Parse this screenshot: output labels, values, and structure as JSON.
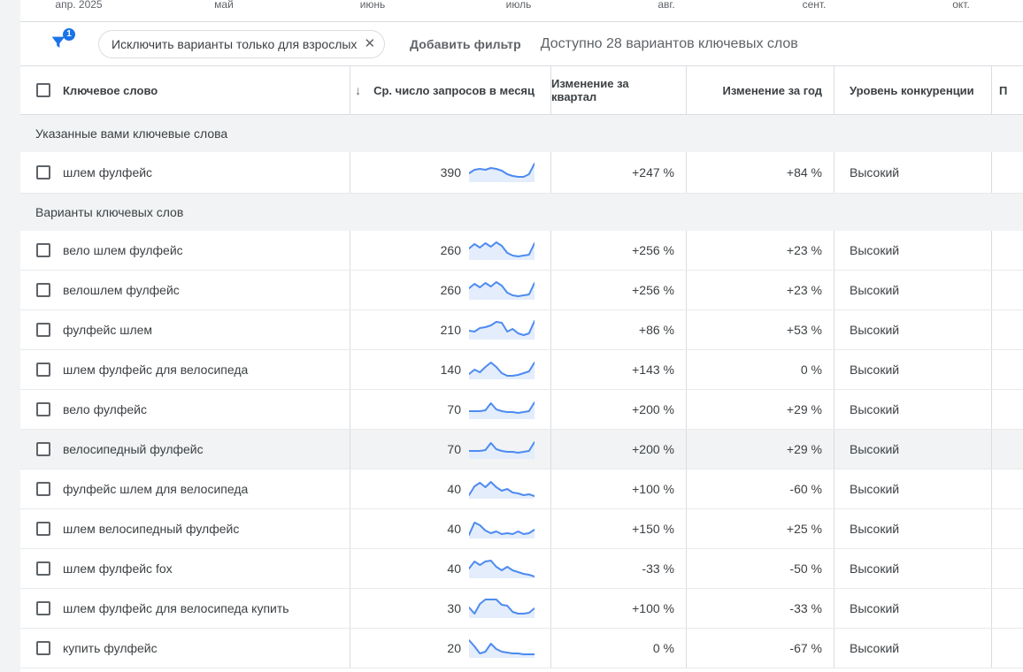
{
  "timeline": {
    "months": [
      "апр. 2025",
      "май",
      "июнь",
      "июль",
      "авг.",
      "сент.",
      "окт."
    ]
  },
  "filter_bar": {
    "badge_count": "1",
    "chip_label": "Исключить варианты только для взрослых",
    "remove_icon": "✕",
    "add_filter_label": "Добавить фильтр",
    "available_text": "Доступно 28 вариантов ключевых слов"
  },
  "table": {
    "columns": {
      "keyword": "Ключевое слово",
      "sort_arrow": "↓",
      "avg_monthly_searches": "Ср. число запросов в месяц",
      "quarterly_change": "Изменение за квартал",
      "yearly_change": "Изменение за год",
      "competition": "Уровень конкуренции",
      "last_partial": "П"
    },
    "rows": [
      {
        "type": "section",
        "label": "Указанные вами ключевые слова"
      },
      {
        "type": "row",
        "keyword": "шлем фулфейс",
        "volume": "390",
        "quarterly": "+247 %",
        "yearly": "+84 %",
        "competition": "Высокий",
        "highlighted": false,
        "sparkline": [
          14,
          10,
          9,
          10,
          8,
          9,
          11,
          15,
          17,
          18,
          18,
          15,
          3
        ]
      },
      {
        "type": "section",
        "label": "Варианты ключевых слов"
      },
      {
        "type": "row",
        "keyword": "вело шлем фулфейс",
        "volume": "260",
        "quarterly": "+256 %",
        "yearly": "+23 %",
        "competition": "Высокий",
        "highlighted": false,
        "sparkline": [
          11,
          6,
          10,
          5,
          9,
          4,
          8,
          16,
          19,
          20,
          19,
          18,
          5
        ]
      },
      {
        "type": "row",
        "keyword": "велошлем фулфейс",
        "volume": "260",
        "quarterly": "+256 %",
        "yearly": "+23 %",
        "competition": "Высокий",
        "highlighted": false,
        "sparkline": [
          11,
          6,
          10,
          5,
          9,
          4,
          8,
          16,
          19,
          20,
          19,
          18,
          5
        ]
      },
      {
        "type": "row",
        "keyword": "фулфейс шлем",
        "volume": "210",
        "quarterly": "+86 %",
        "yearly": "+53 %",
        "competition": "Высокий",
        "highlighted": false,
        "sparkline": [
          14,
          15,
          11,
          10,
          8,
          4,
          5,
          15,
          12,
          17,
          19,
          17,
          3
        ]
      },
      {
        "type": "row",
        "keyword": "шлем фулфейс для велосипеда",
        "volume": "140",
        "quarterly": "+143 %",
        "yearly": "0 %",
        "competition": "Высокий",
        "highlighted": false,
        "sparkline": [
          18,
          13,
          16,
          10,
          5,
          10,
          17,
          20,
          20,
          19,
          17,
          15,
          5
        ]
      },
      {
        "type": "row",
        "keyword": "вело фулфейс",
        "volume": "70",
        "quarterly": "+200 %",
        "yearly": "+29 %",
        "competition": "Высокий",
        "highlighted": false,
        "sparkline": [
          15,
          15,
          15,
          14,
          6,
          13,
          15,
          16,
          16,
          17,
          16,
          15,
          5
        ]
      },
      {
        "type": "row",
        "keyword": "велосипедный фулфейс",
        "volume": "70",
        "quarterly": "+200 %",
        "yearly": "+29 %",
        "competition": "Высокий",
        "highlighted": true,
        "sparkline": [
          15,
          15,
          15,
          14,
          6,
          13,
          15,
          16,
          16,
          17,
          16,
          15,
          5
        ]
      },
      {
        "type": "row",
        "keyword": "фулфейс шлем для велосипеда",
        "volume": "40",
        "quarterly": "+100 %",
        "yearly": "-60 %",
        "competition": "Высокий",
        "highlighted": false,
        "sparkline": [
          20,
          10,
          6,
          11,
          5,
          11,
          15,
          13,
          17,
          18,
          20,
          19,
          21
        ]
      },
      {
        "type": "row",
        "keyword": "шлем велосипедный фулфейс",
        "volume": "40",
        "quarterly": "+150 %",
        "yearly": "+25 %",
        "competition": "Высокий",
        "highlighted": false,
        "sparkline": [
          20,
          6,
          9,
          15,
          18,
          16,
          19,
          18,
          19,
          16,
          19,
          18,
          14
        ]
      },
      {
        "type": "row",
        "keyword": "шлем фулфейс fox",
        "volume": "40",
        "quarterly": "-33 %",
        "yearly": "-50 %",
        "competition": "Высокий",
        "highlighted": false,
        "sparkline": [
          13,
          5,
          9,
          5,
          4,
          11,
          15,
          11,
          15,
          17,
          19,
          20,
          22
        ]
      },
      {
        "type": "row",
        "keyword": "шлем фулфейс для велосипеда купить",
        "volume": "30",
        "quarterly": "+100 %",
        "yearly": "-33 %",
        "competition": "Высокий",
        "highlighted": false,
        "sparkline": [
          12,
          19,
          8,
          3,
          3,
          3,
          9,
          10,
          17,
          19,
          19,
          18,
          13
        ]
      },
      {
        "type": "row",
        "keyword": "купить фулфейс",
        "volume": "20",
        "quarterly": "0 %",
        "yearly": "-67 %",
        "competition": "Высокий",
        "highlighted": false,
        "sparkline": [
          4,
          11,
          19,
          17,
          8,
          14,
          17,
          18,
          19,
          19,
          20,
          20,
          20
        ]
      }
    ]
  },
  "colors": {
    "accent": "#1a73e8",
    "sparkline_line": "#4d8bf0",
    "sparkline_fill": "#e3edfb"
  }
}
